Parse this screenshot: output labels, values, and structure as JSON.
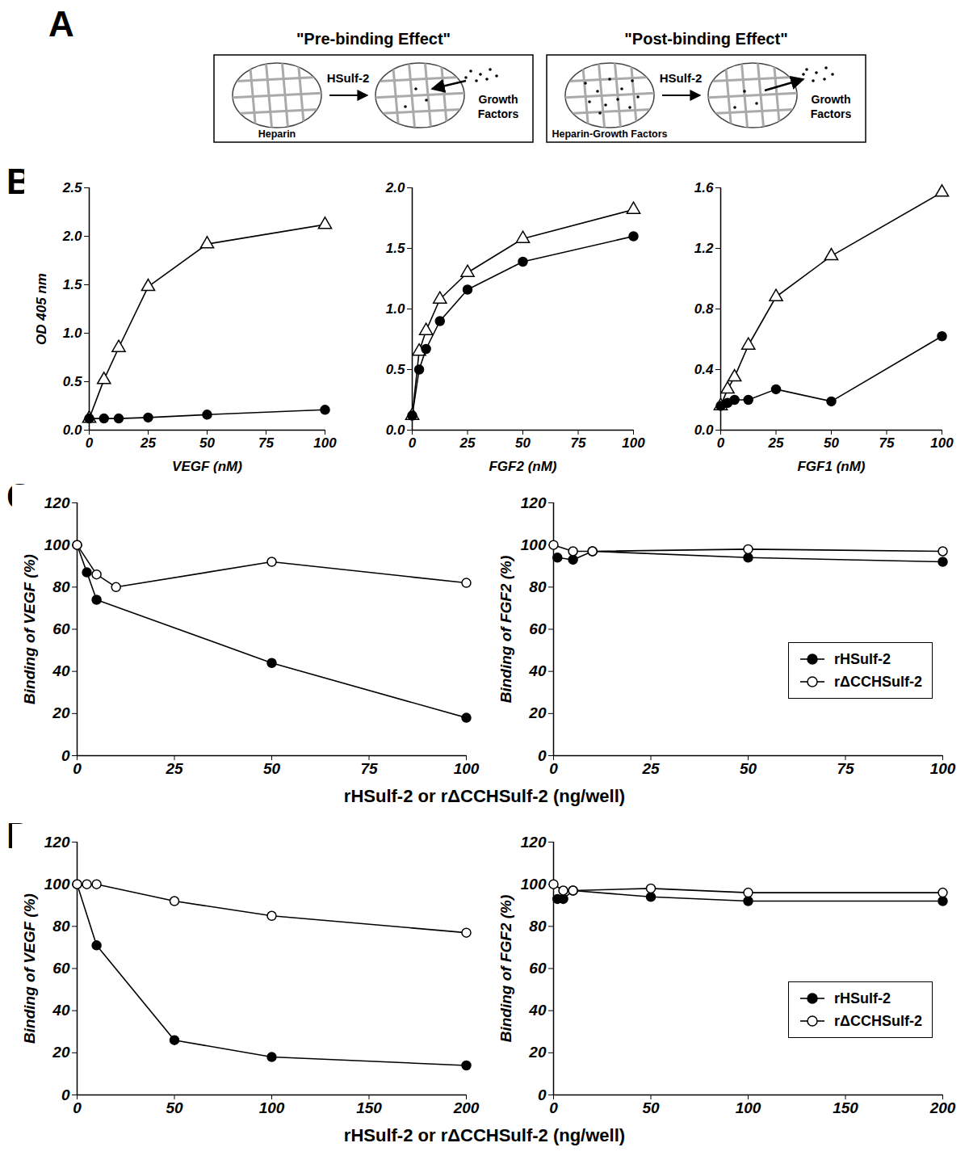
{
  "diagram": {
    "panel": "A",
    "boxes": [
      {
        "title": "\"Pre-binding Effect\"",
        "left_label": "Heparin",
        "arrow_label": "HSulf-2",
        "right_label": "Growth Factors"
      },
      {
        "title": "\"Post-binding Effect\"",
        "left_label": "Heparin-Growth Factors",
        "arrow_label": "HSulf-2",
        "right_label": "Growth Factors"
      }
    ]
  },
  "chart_data": [
    {
      "type": "line",
      "panel": "B",
      "x_label": "VEGF (nM)",
      "y_label": "OD 405 nm",
      "x": [
        0,
        6.25,
        12.5,
        25,
        50,
        100
      ],
      "xlim": [
        0,
        100
      ],
      "xticks": [
        0,
        25,
        50,
        75,
        100
      ],
      "ylim": [
        0,
        2.5
      ],
      "yticks": [
        0,
        0.5,
        1,
        1.5,
        2,
        2.5
      ],
      "series": [
        {
          "color": "#000000",
          "marker": "open_triangle",
          "values": [
            0.12,
            0.52,
            0.85,
            1.48,
            1.92,
            2.12
          ]
        },
        {
          "color": "#000000",
          "marker": "filled_circle",
          "values": [
            0.12,
            0.12,
            0.12,
            0.13,
            0.16,
            0.21
          ]
        }
      ]
    },
    {
      "type": "line",
      "panel": "B",
      "x_label": "FGF2 (nM)",
      "x": [
        0,
        3.125,
        6.25,
        12.5,
        25,
        50,
        100
      ],
      "xlim": [
        0,
        100
      ],
      "xticks": [
        0,
        25,
        50,
        75,
        100
      ],
      "ylim": [
        0,
        2
      ],
      "yticks": [
        0,
        0.5,
        1,
        1.5,
        2
      ],
      "series": [
        {
          "color": "#000000",
          "marker": "open_triangle",
          "values": [
            0.12,
            0.65,
            0.82,
            1.08,
            1.3,
            1.58,
            1.82
          ]
        },
        {
          "color": "#000000",
          "marker": "filled_circle",
          "values": [
            0.12,
            0.5,
            0.67,
            0.9,
            1.16,
            1.39,
            1.6
          ]
        }
      ]
    },
    {
      "type": "line",
      "panel": "B",
      "x_label": "FGF1 (nM)",
      "x": [
        0,
        3.125,
        6.25,
        12.5,
        25,
        50,
        100
      ],
      "xlim": [
        0,
        100
      ],
      "xticks": [
        0,
        25,
        50,
        75,
        100
      ],
      "ylim": [
        0,
        1.6
      ],
      "yticks": [
        0,
        0.4,
        0.8,
        1.2,
        1.6
      ],
      "series": [
        {
          "color": "#000000",
          "marker": "open_triangle",
          "values": [
            0.16,
            0.27,
            0.35,
            0.56,
            0.88,
            1.15,
            1.57
          ]
        },
        {
          "color": "#000000",
          "marker": "filled_circle",
          "values": [
            0.16,
            0.18,
            0.2,
            0.2,
            0.27,
            0.19,
            0.62
          ]
        }
      ]
    },
    {
      "type": "line",
      "panel": "C",
      "y_label": "Binding of VEGF (%)",
      "shared_x_label": "rHSulf-2 or rΔCCHSulf-2 (ng/well)",
      "xlim": [
        0,
        100
      ],
      "xticks": [
        0,
        25,
        50,
        75,
        100
      ],
      "ylim": [
        0,
        120
      ],
      "yticks": [
        0,
        20,
        40,
        60,
        80,
        100,
        120
      ],
      "series": [
        {
          "color": "#000000",
          "marker": "filled_circle",
          "x": [
            0,
            2.5,
            5,
            50,
            100
          ],
          "values": [
            100,
            87,
            74,
            44,
            18
          ]
        },
        {
          "color": "#000000",
          "marker": "open_circle",
          "x": [
            0,
            5,
            10,
            50,
            100
          ],
          "values": [
            100,
            86,
            80,
            92,
            82
          ]
        }
      ]
    },
    {
      "type": "line",
      "panel": "C",
      "y_label": "Binding of FGF2 (%)",
      "legend": "lower right",
      "xlim": [
        0,
        100
      ],
      "xticks": [
        0,
        25,
        50,
        75,
        100
      ],
      "ylim": [
        0,
        120
      ],
      "yticks": [
        0,
        20,
        40,
        60,
        80,
        100,
        120
      ],
      "series": [
        {
          "name": "rHSulf-2",
          "color": "#000000",
          "marker": "filled_circle",
          "x": [
            1,
            5,
            10,
            50,
            100
          ],
          "values": [
            94,
            93,
            97,
            94,
            92
          ]
        },
        {
          "name": "rΔCCHSulf-2",
          "color": "#000000",
          "marker": "open_circle",
          "x": [
            0,
            5,
            10,
            50,
            100
          ],
          "values": [
            100,
            97,
            97,
            98,
            97
          ]
        }
      ]
    },
    {
      "type": "line",
      "panel": "D",
      "y_label": "Binding of VEGF (%)",
      "shared_x_label": "rHSulf-2 or rΔCCHSulf-2 (ng/well)",
      "xlim": [
        0,
        200
      ],
      "xticks": [
        0,
        50,
        100,
        150,
        200
      ],
      "ylim": [
        0,
        120
      ],
      "yticks": [
        0,
        20,
        40,
        60,
        80,
        100,
        120
      ],
      "series": [
        {
          "color": "#000000",
          "marker": "filled_circle",
          "x": [
            0,
            10,
            50,
            100,
            200
          ],
          "values": [
            100,
            71,
            26,
            18,
            14
          ]
        },
        {
          "color": "#000000",
          "marker": "open_circle",
          "x": [
            0,
            5,
            10,
            50,
            100,
            200
          ],
          "values": [
            100,
            100,
            100,
            92,
            85,
            77
          ]
        }
      ]
    },
    {
      "type": "line",
      "panel": "D",
      "y_label": "Binding of FGF2 (%)",
      "legend": "lower right",
      "xlim": [
        0,
        200
      ],
      "xticks": [
        0,
        50,
        100,
        150,
        200
      ],
      "ylim": [
        0,
        120
      ],
      "yticks": [
        0,
        20,
        40,
        60,
        80,
        100,
        120
      ],
      "series": [
        {
          "name": "rHSulf-2",
          "color": "#000000",
          "marker": "filled_circle",
          "x": [
            2,
            5,
            10,
            50,
            100,
            200
          ],
          "values": [
            93,
            93,
            97,
            94,
            92,
            92
          ]
        },
        {
          "name": "rΔCCHSulf-2",
          "color": "#000000",
          "marker": "open_circle",
          "x": [
            0,
            5,
            10,
            50,
            100,
            200
          ],
          "values": [
            100,
            97,
            97,
            98,
            96,
            96
          ]
        }
      ]
    }
  ]
}
